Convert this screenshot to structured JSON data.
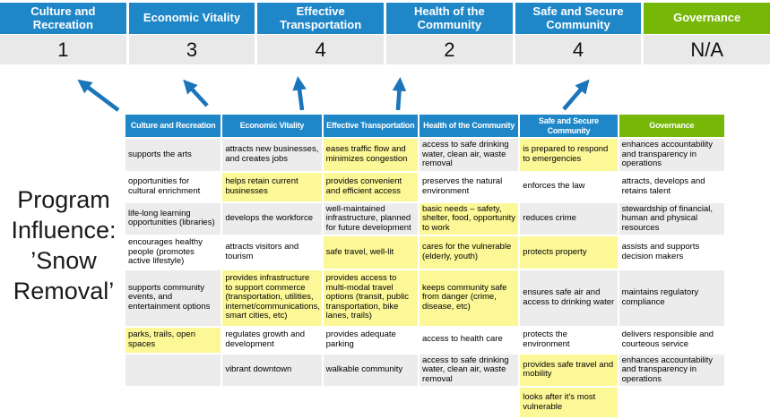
{
  "side_label": {
    "full_text": "Program Influence: ’Snow Removal’",
    "lines": [
      "Program",
      "Influence:",
      "’Snow",
      "Removal’"
    ]
  },
  "scorecard": {
    "items": [
      {
        "label": "Culture and Recreation",
        "value": "1",
        "type": "blue"
      },
      {
        "label": "Economic Vitality",
        "value": "3",
        "type": "blue"
      },
      {
        "label": "Effective Transportation",
        "value": "4",
        "type": "blue"
      },
      {
        "label": "Health of the Community",
        "value": "2",
        "type": "blue"
      },
      {
        "label": "Safe and Secure Community",
        "value": "4",
        "type": "blue"
      },
      {
        "label": "Governance",
        "value": "N/A",
        "type": "green"
      }
    ]
  },
  "arrows": {
    "count": 5,
    "description": "blue arrows pointing from matrix columns up to scorecard values",
    "targets": [
      "Culture and Recreation",
      "Economic Vitality",
      "Effective Transportation",
      "Health of the Community",
      "Safe and Secure Community"
    ]
  },
  "matrix": {
    "columns": [
      {
        "label": "Culture and Recreation",
        "type": "blue"
      },
      {
        "label": "Economic Vitality",
        "type": "blue"
      },
      {
        "label": "Effective Transportation",
        "type": "blue"
      },
      {
        "label": "Health of the Community",
        "type": "blue"
      },
      {
        "label": "Safe and Secure Community",
        "type": "blue"
      },
      {
        "label": "Governance",
        "type": "green"
      }
    ],
    "rows": [
      [
        {
          "text": "supports the arts",
          "highlight": false
        },
        {
          "text": "attracts new businesses, and creates jobs",
          "highlight": false
        },
        {
          "text": "eases traffic flow and minimizes congestion",
          "highlight": true
        },
        {
          "text": "access to safe drinking water, clean air, waste removal",
          "highlight": false
        },
        {
          "text": "is prepared to respond to emergencies",
          "highlight": true
        },
        {
          "text": "enhances accountability and transparency in operations",
          "highlight": false
        }
      ],
      [
        {
          "text": "opportunities for cultural enrichment",
          "highlight": false
        },
        {
          "text": "helps retain current businesses",
          "highlight": true
        },
        {
          "text": "provides convenient and efficient access",
          "highlight": true
        },
        {
          "text": "preserves the natural environment",
          "highlight": false
        },
        {
          "text": "enforces the law",
          "highlight": false
        },
        {
          "text": "attracts, develops and retains talent",
          "highlight": false
        }
      ],
      [
        {
          "text": "life-long learning opportunities (libraries)",
          "highlight": false
        },
        {
          "text": "develops the workforce",
          "highlight": false
        },
        {
          "text": "well-maintained infrastructure, planned for future development",
          "highlight": false
        },
        {
          "text": "basic needs – safety, shelter, food, opportunity to work",
          "highlight": true
        },
        {
          "text": "reduces crime",
          "highlight": false
        },
        {
          "text": "stewardship of financial, human and physical resources",
          "highlight": false
        }
      ],
      [
        {
          "text": "encourages healthy people (promotes active lifestyle)",
          "highlight": false
        },
        {
          "text": "attracts visitors and tourism",
          "highlight": false
        },
        {
          "text": "safe travel, well-lit",
          "highlight": true
        },
        {
          "text": "cares for the vulnerable (elderly, youth)",
          "highlight": true
        },
        {
          "text": "protects property",
          "highlight": true
        },
        {
          "text": "assists and supports decision makers",
          "highlight": false
        }
      ],
      [
        {
          "text": "supports community events, and entertainment options",
          "highlight": false
        },
        {
          "text": "provides infrastructure to support commerce (transportation, utilities, internet/communications, smart cities, etc)",
          "highlight": true
        },
        {
          "text": "provides access to multi-modal travel options (transit, public transportation, bike lanes, trails)",
          "highlight": true
        },
        {
          "text": "keeps community safe from danger (crime, disease, etc)",
          "highlight": true
        },
        {
          "text": "ensures safe air and access to drinking water",
          "highlight": false
        },
        {
          "text": "maintains regulatory compliance",
          "highlight": false
        }
      ],
      [
        {
          "text": "parks, trails, open spaces",
          "highlight": true
        },
        {
          "text": "regulates growth and development",
          "highlight": false
        },
        {
          "text": "provides adequate parking",
          "highlight": false
        },
        {
          "text": "access to health care",
          "highlight": false
        },
        {
          "text": "protects the environment",
          "highlight": false
        },
        {
          "text": "delivers responsible and courteous service",
          "highlight": false
        }
      ],
      [
        {
          "text": "",
          "highlight": false
        },
        {
          "text": "vibrant downtown",
          "highlight": false
        },
        {
          "text": "walkable community",
          "highlight": false
        },
        {
          "text": "access to safe drinking water, clean air, waste removal",
          "highlight": false
        },
        {
          "text": "provides safe travel and mobility",
          "highlight": true
        },
        {
          "text": "enhances accountability and transparency in operations",
          "highlight": false
        }
      ],
      [
        {
          "text": "",
          "highlight": false
        },
        {
          "text": "",
          "highlight": false
        },
        {
          "text": "",
          "highlight": false
        },
        {
          "text": "",
          "highlight": false
        },
        {
          "text": "looks after it's most vulnerable",
          "highlight": true
        },
        {
          "text": "",
          "highlight": false
        }
      ]
    ]
  },
  "colors": {
    "header_blue": "#1f87c8",
    "header_green": "#76b708",
    "highlight_yellow": "#fcf897",
    "row_gray": "#ececec",
    "score_row_bg": "#e9e9e9",
    "arrow_blue": "#1b75bb"
  }
}
